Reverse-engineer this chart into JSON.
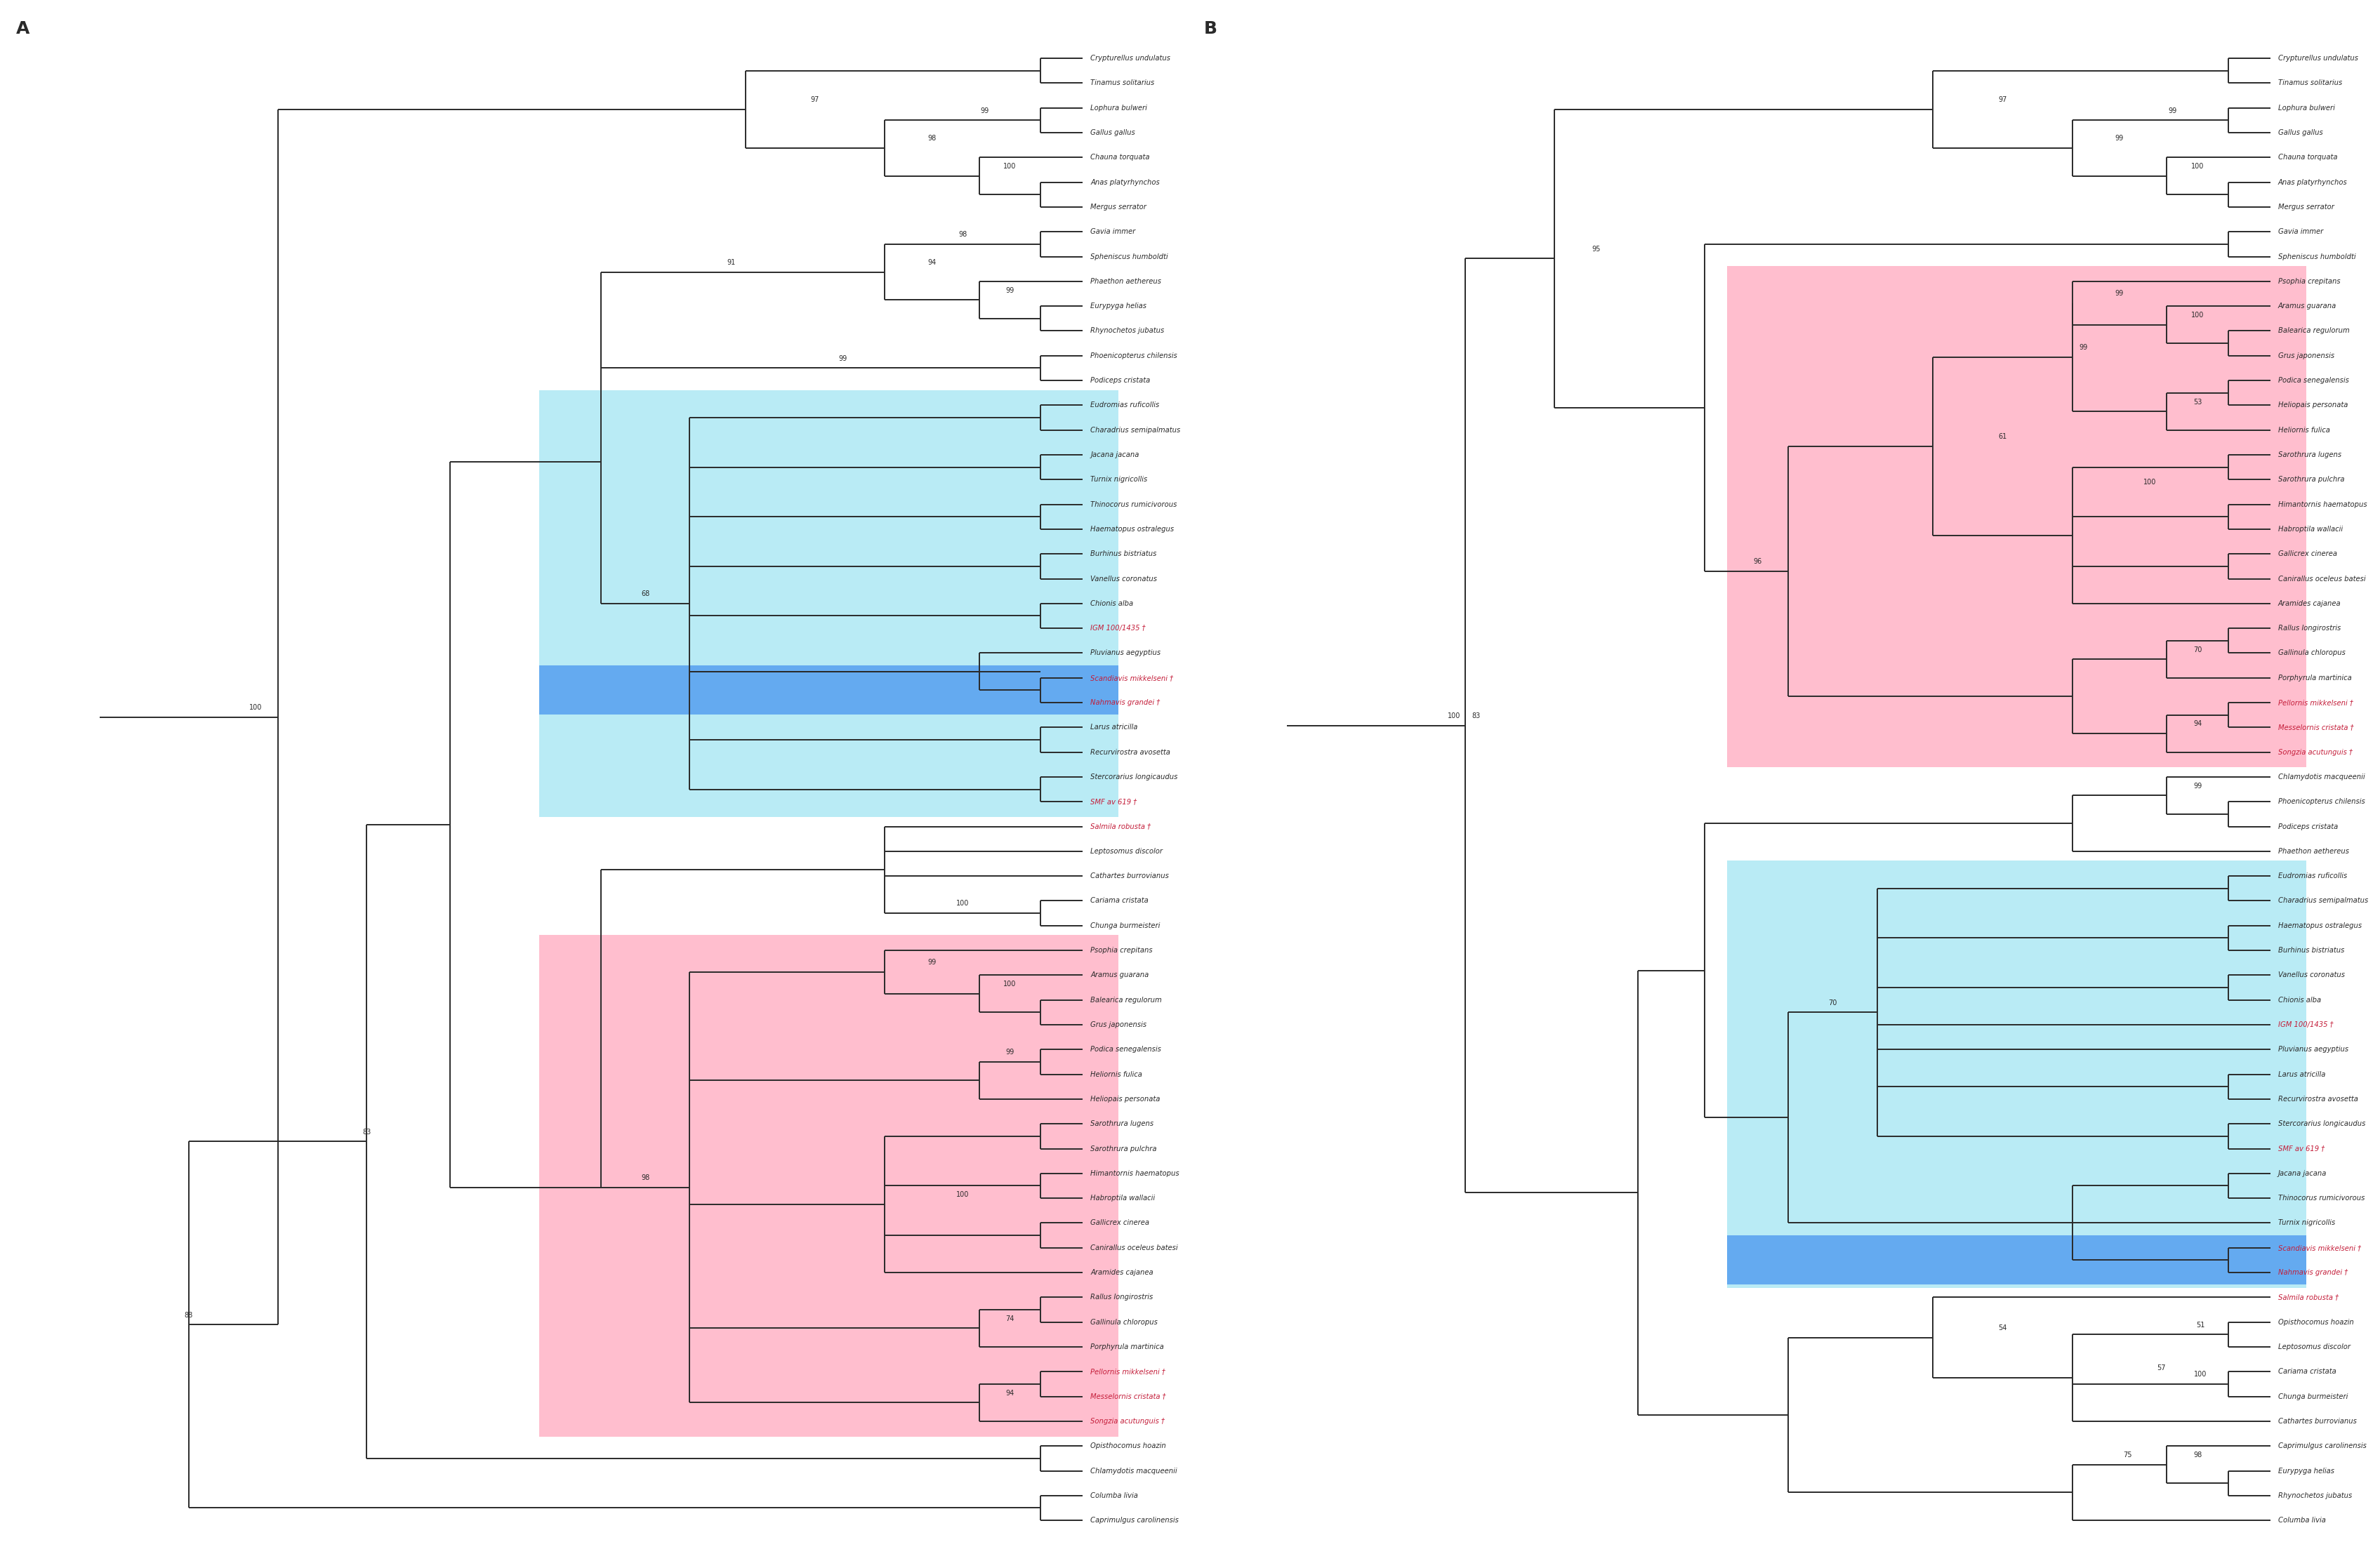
{
  "blue_color": "#ADE8F4",
  "pink_color": "#FFB3C6",
  "darkblue_color": "#4895EF",
  "line_color": "#2a2a2a",
  "fossil_color": "#C41E3A",
  "background": "#FFFFFF",
  "panel_A": {
    "taxa": [
      "Crypturellus undulatus",
      "Tinamus solitarius",
      "Lophura bulweri",
      "Gallus gallus",
      "Chauna torquata",
      "Anas platyrhynchos",
      "Mergus serrator",
      "Gavia immer",
      "Spheniscus humboldti",
      "Phaethon aethereus",
      "Eurypyga helias",
      "Rhynochetos jubatus",
      "Phoenicopterus chilensis",
      "Podiceps cristata",
      "Eudromias ruficollis",
      "Charadrius semipalmatus",
      "Jacana jacana",
      "Turnix nigricollis",
      "Thinocorus rumicivorous",
      "Haematopus ostralegus",
      "Burhinus bistriatus",
      "Vanellus coronatus",
      "Chionis alba",
      "IGM 100/1435 †",
      "Pluvianus aegyptius",
      "Scandiavis mikkelseni †",
      "Nahmavis grandei †",
      "Larus atricilla",
      "Recurvirostra avosetta",
      "Stercorarius longicaudus",
      "SMF av 619 †",
      "Salmila robusta †",
      "Leptosomus discolor",
      "Cathartes burrovianus",
      "Cariama cristata",
      "Chunga burmeisteri",
      "Psophia crepitans",
      "Aramus guarana",
      "Balearica regulorum",
      "Grus japonensis",
      "Podica senegalensis",
      "Heliornis fulica",
      "Heliopais personata",
      "Sarothrura lugens",
      "Sarothrura pulchra",
      "Himantornis haematopus",
      "Habroptila wallacii",
      "Gallicrex cinerea",
      "Canirallus oceleus batesi",
      "Aramides cajanea",
      "Rallus longirostris",
      "Gallinula chloropus",
      "Porphyrula martinica",
      "Pellornis mikkelseni †",
      "Messelornis cristata †",
      "Songzia acutunguis †",
      "Opisthocomus hoazin",
      "Chlamydotis macqueenii",
      "Columba livia",
      "Caprimulgus carolinensis"
    ],
    "blue_range": [
      14,
      30
    ],
    "darkblue_range": [
      25,
      26
    ],
    "pink_range": [
      36,
      55
    ]
  },
  "panel_B": {
    "taxa": [
      "Crypturellus undulatus",
      "Tinamus solitarius",
      "Lophura bulweri",
      "Gallus gallus",
      "Chauna torquata",
      "Anas platyrhynchos",
      "Mergus serrator",
      "Gavia immer",
      "Spheniscus humboldti",
      "Psophia crepitans",
      "Aramus guarana",
      "Balearica regulorum",
      "Grus japonensis",
      "Podica senegalensis",
      "Heliopais personata",
      "Heliornis fulica",
      "Sarothrura lugens",
      "Sarothrura pulchra",
      "Himantornis haematopus",
      "Habroptila wallacii",
      "Gallicrex cinerea",
      "Canirallus oceleus batesi",
      "Aramides cajanea",
      "Rallus longirostris",
      "Gallinula chloropus",
      "Porphyrula martinica",
      "Pellornis mikkelseni †",
      "Messelornis cristata †",
      "Songzia acutunguis †",
      "Chlamydotis macqueenii",
      "Phoenicopterus chilensis",
      "Podiceps cristata",
      "Phaethon aethereus",
      "Eudromias ruficollis",
      "Charadrius semipalmatus",
      "Haematopus ostralegus",
      "Burhinus bistriatus",
      "Vanellus coronatus",
      "Chionis alba",
      "IGM 100/1435 †",
      "Pluvianus aegyptius",
      "Larus atricilla",
      "Recurvirostra avosetta",
      "Stercorarius longicaudus",
      "SMF av 619 †",
      "Jacana jacana",
      "Thinocorus rumicivorous",
      "Turnix nigricollis",
      "Scandiavis mikkelseni †",
      "Nahmavis grandei †",
      "Salmila robusta †",
      "Opisthocomus hoazin",
      "Leptosomus discolor",
      "Cariama cristata",
      "Chunga burmeisteri",
      "Cathartes burrovianus",
      "Caprimulgus carolinensis",
      "Eurypyga helias",
      "Rhynochetos jubatus",
      "Columba livia"
    ],
    "pink_range": [
      9,
      28
    ],
    "blue_range": [
      33,
      49
    ],
    "darkblue_range": [
      48,
      49
    ]
  }
}
